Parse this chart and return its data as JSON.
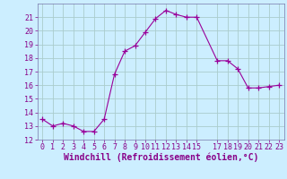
{
  "x": [
    0,
    1,
    2,
    3,
    4,
    5,
    6,
    7,
    8,
    9,
    10,
    11,
    12,
    13,
    14,
    15,
    17,
    18,
    19,
    20,
    21,
    22,
    23
  ],
  "y": [
    13.5,
    13.0,
    13.2,
    13.0,
    12.6,
    12.6,
    13.5,
    16.8,
    18.5,
    18.9,
    19.9,
    20.9,
    21.5,
    21.2,
    21.0,
    21.0,
    17.8,
    17.8,
    17.2,
    15.8,
    15.8,
    15.9,
    16.0
  ],
  "line_color": "#990099",
  "marker": "+",
  "marker_size": 4,
  "bg_color": "#cceeff",
  "grid_color": "#aacccc",
  "xlabel": "Windchill (Refroidissement éolien,°C)",
  "xlabel_fontsize": 7,
  "ylim": [
    12,
    22
  ],
  "yticks": [
    12,
    13,
    14,
    15,
    16,
    17,
    18,
    19,
    20,
    21
  ],
  "xticks": [
    0,
    1,
    2,
    3,
    4,
    5,
    6,
    7,
    8,
    9,
    10,
    11,
    12,
    13,
    14,
    15,
    17,
    18,
    19,
    20,
    21,
    22,
    23
  ],
  "tick_fontsize": 6,
  "tick_color": "#880088",
  "spine_color": "#7777aa",
  "linewidth": 0.8
}
